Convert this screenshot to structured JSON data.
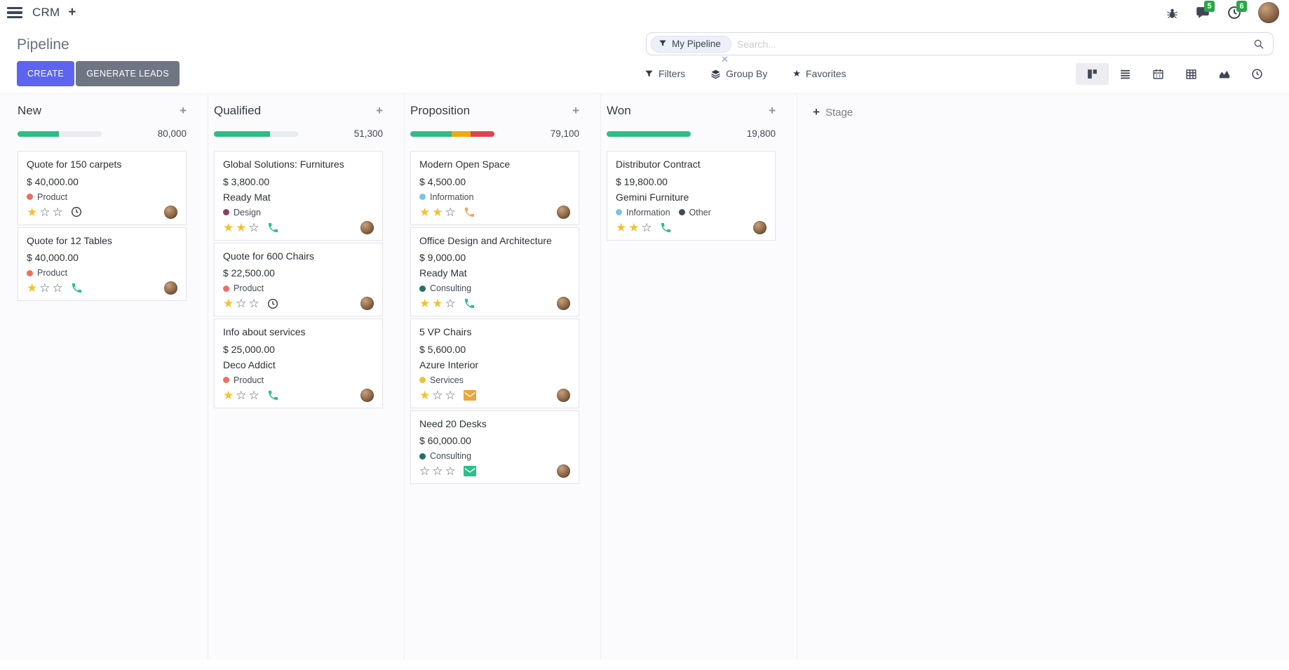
{
  "navbar": {
    "app_name": "CRM",
    "messages_badge": "5",
    "activities_badge": "6"
  },
  "control_panel": {
    "title": "Pipeline",
    "create_label": "CREATE",
    "generate_leads_label": "GENERATE LEADS",
    "search": {
      "facet_label": "My Pipeline",
      "placeholder": "Search...",
      "remove_facet": "x"
    },
    "filters_label": "Filters",
    "group_by_label": "Group By",
    "favorites_label": "Favorites"
  },
  "colors": {
    "primary_button": "#5c64f0",
    "secondary_button": "#6e7583",
    "badge_green": "#28a745",
    "progress_green": "#2ebd82",
    "progress_yellow": "#f0a80d",
    "progress_red": "#e0454c",
    "star_gold": "#f0c22e"
  },
  "kanban": {
    "stage_button_label": "Stage",
    "columns": [
      {
        "name": "New",
        "value": "80,000",
        "progress": [
          {
            "color": "#2ebd82",
            "pct": 49
          }
        ],
        "cards": [
          {
            "title": "Quote for 150 carpets",
            "amount": "$ 40,000.00",
            "company": "",
            "tags": [
              {
                "label": "Product",
                "color": "#ed6e62"
              }
            ],
            "stars": 2,
            "stars_filled": 1,
            "activity": {
              "icon": "clock",
              "color": "#3d434c"
            }
          },
          {
            "title": "Quote for 12 Tables",
            "amount": "$ 40,000.00",
            "company": "",
            "tags": [
              {
                "label": "Product",
                "color": "#ed6e62"
              }
            ],
            "stars": 2,
            "stars_filled": 1,
            "activity": {
              "icon": "phone",
              "color": "#29c08e"
            }
          }
        ]
      },
      {
        "name": "Qualified",
        "value": "51,300",
        "progress": [
          {
            "color": "#2ebd82",
            "pct": 67
          }
        ],
        "cards": [
          {
            "title": "Global Solutions: Furnitures",
            "amount": "$ 3,800.00",
            "company": "Ready Mat",
            "tags": [
              {
                "label": "Design",
                "color": "#8a3e68"
              }
            ],
            "stars": 2,
            "stars_filled": 2,
            "activity": {
              "icon": "phone",
              "color": "#29c08e"
            }
          },
          {
            "title": "Quote for 600 Chairs",
            "amount": "$ 22,500.00",
            "company": "",
            "tags": [
              {
                "label": "Product",
                "color": "#ed6e62"
              }
            ],
            "stars": 2,
            "stars_filled": 1,
            "activity": {
              "icon": "clock",
              "color": "#3d434c"
            }
          },
          {
            "title": "Info about services",
            "amount": "$ 25,000.00",
            "company": "Deco Addict",
            "tags": [
              {
                "label": "Product",
                "color": "#ed6e62"
              }
            ],
            "stars": 2,
            "stars_filled": 1,
            "activity": {
              "icon": "phone",
              "color": "#29c08e"
            }
          }
        ]
      },
      {
        "name": "Proposition",
        "value": "79,100",
        "progress": [
          {
            "color": "#2ebd82",
            "pct": 49
          },
          {
            "color": "#f0a80d",
            "pct": 23
          },
          {
            "color": "#e0454c",
            "pct": 28
          }
        ],
        "cards": [
          {
            "title": "Modern Open Space",
            "amount": "$ 4,500.00",
            "company": "",
            "tags": [
              {
                "label": "Information",
                "color": "#7ec1e8"
              }
            ],
            "stars": 2,
            "stars_filled": 2,
            "activity": {
              "icon": "phone",
              "color": "#f0a75a"
            }
          },
          {
            "title": "Office Design and Architecture",
            "amount": "$ 9,000.00",
            "company": "Ready Mat",
            "tags": [
              {
                "label": "Consulting",
                "color": "#256f6b"
              }
            ],
            "stars": 2,
            "stars_filled": 2,
            "activity": {
              "icon": "phone",
              "color": "#29c08e"
            }
          },
          {
            "title": "5 VP Chairs",
            "amount": "$ 5,600.00",
            "company": "Azure Interior",
            "tags": [
              {
                "label": "Services",
                "color": "#edc13c"
              }
            ],
            "stars": 2,
            "stars_filled": 1,
            "activity": {
              "icon": "envelope",
              "color": "#eaa63d"
            }
          },
          {
            "title": "Need 20 Desks",
            "amount": "$ 60,000.00",
            "company": "",
            "tags": [
              {
                "label": "Consulting",
                "color": "#256f6b"
              }
            ],
            "stars": 2,
            "stars_filled": 0,
            "activity": {
              "icon": "envelope",
              "color": "#2cc08b"
            }
          }
        ]
      },
      {
        "name": "Won",
        "value": "19,800",
        "progress": [
          {
            "color": "#2ebd82",
            "pct": 100
          }
        ],
        "cards": [
          {
            "title": "Distributor Contract",
            "amount": "$ 19,800.00",
            "company": "Gemini Furniture",
            "tags": [
              {
                "label": "Information",
                "color": "#7ec1e8"
              },
              {
                "label": "Other",
                "color": "#3e4c59"
              }
            ],
            "stars": 2,
            "stars_filled": 2,
            "activity": {
              "icon": "phone",
              "color": "#29c08e"
            }
          }
        ]
      }
    ]
  }
}
